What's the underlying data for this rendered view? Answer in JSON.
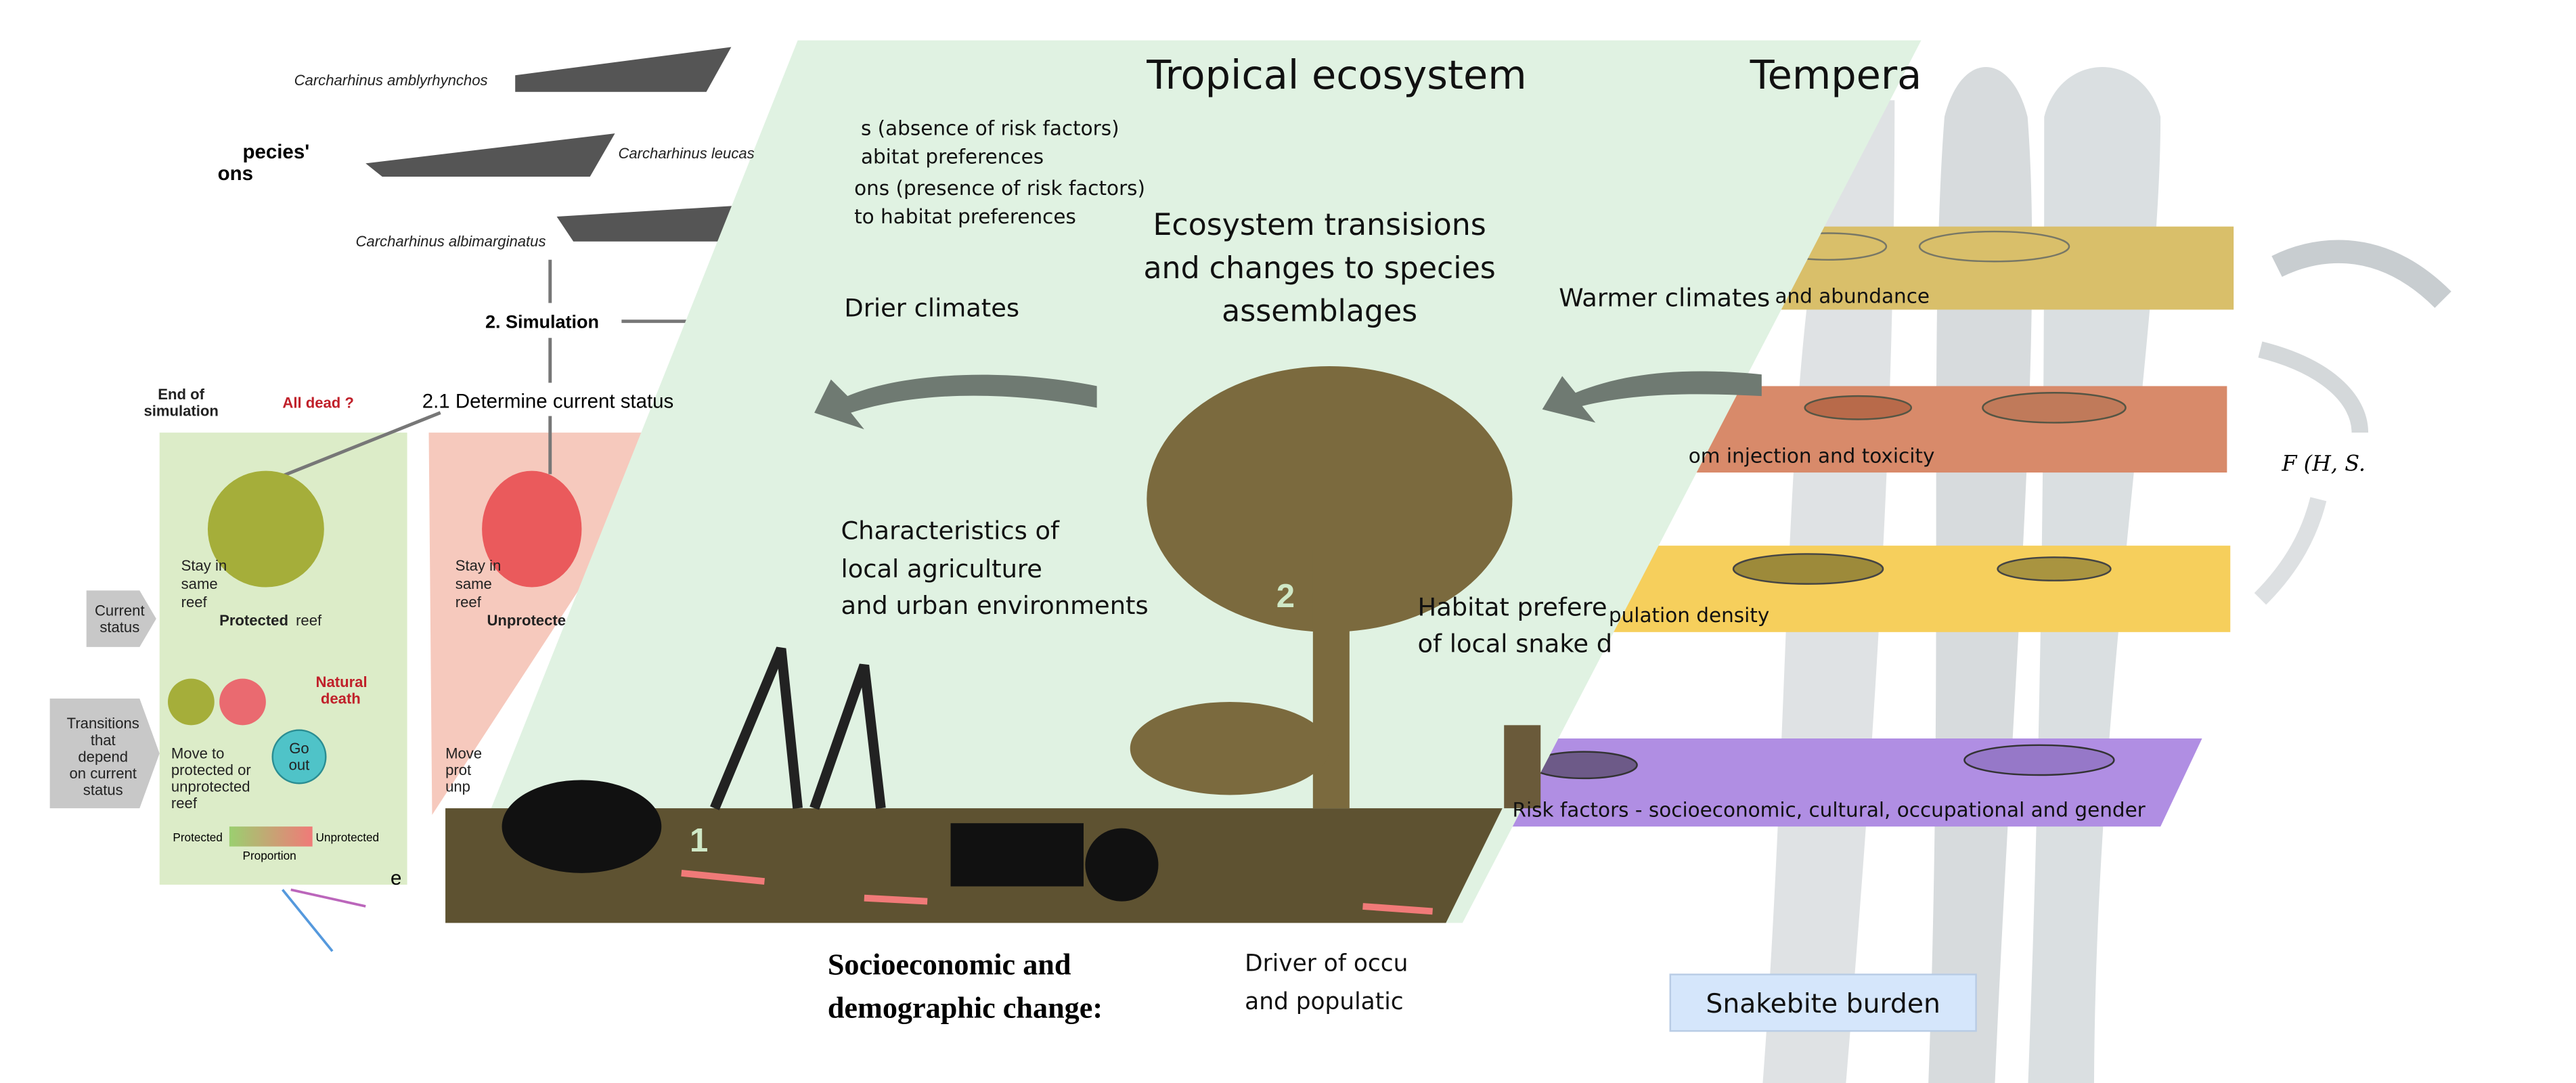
{
  "left_panel": {
    "species": [
      "Carcharhinus amblyrhynchos",
      "Carcharhinus leucas",
      "Carcharhinus albimarginatus"
    ],
    "cut_heading": [
      "pecies'",
      "ons"
    ],
    "simulation": "2. Simulation",
    "end_of_simulation": [
      "End of",
      "simulation"
    ],
    "all_dead": "All dead ?",
    "determine_status": "2.1 Determine current status",
    "protected_stay": [
      "Stay in",
      "same",
      "reef"
    ],
    "protected_label": "Protected",
    "protected_reef": "reef",
    "natural_death": [
      "Natural",
      "death"
    ],
    "move_to": [
      "Move to",
      "protected or",
      "unprotected",
      "reef"
    ],
    "go_out": [
      "Go",
      "out"
    ],
    "current_status": [
      "Current",
      "status"
    ],
    "transitions": [
      "Transitions",
      "that",
      "depend",
      "on current",
      "status"
    ],
    "legend_protected": "Protected",
    "legend_unprotected": "Unprotected",
    "legend_proportion": "Proportion",
    "unprotected_stay": [
      "Stay in",
      "same",
      "reef"
    ],
    "unprotected_label": "Unprotecte",
    "unprotected_move": [
      "Move",
      "prot",
      "unp"
    ],
    "cut_e": "e"
  },
  "center_panel": {
    "title": "Tropical ecosystem",
    "risk_notes": [
      "s (absence of risk factors)",
      "abitat preferences",
      "ons (presence of risk factors)",
      "to habitat preferences"
    ],
    "transitions": [
      "Ecosystem transisions",
      "and changes to species",
      "assemblages"
    ],
    "drier": "Drier climates",
    "characteristics": [
      "Characteristics of",
      "local agriculture",
      "and urban environments"
    ],
    "habitat": [
      "Habitat prefere",
      "of local snake d"
    ],
    "marker_1": "1",
    "marker_2": "2",
    "socio": [
      "Socioeconomic and",
      "demographic change:"
    ],
    "driver": [
      "Driver of occu",
      "and populatic"
    ]
  },
  "right_panel": {
    "title": "Tempera",
    "warmer": "Warmer climates",
    "layers": [
      "and abundance",
      "om injection and toxicity",
      "pulation density",
      "Risk factors - socioeconomic, cultural, occupational and gender"
    ],
    "formula": "F (H, S.",
    "burden": "Snakebite burden"
  }
}
